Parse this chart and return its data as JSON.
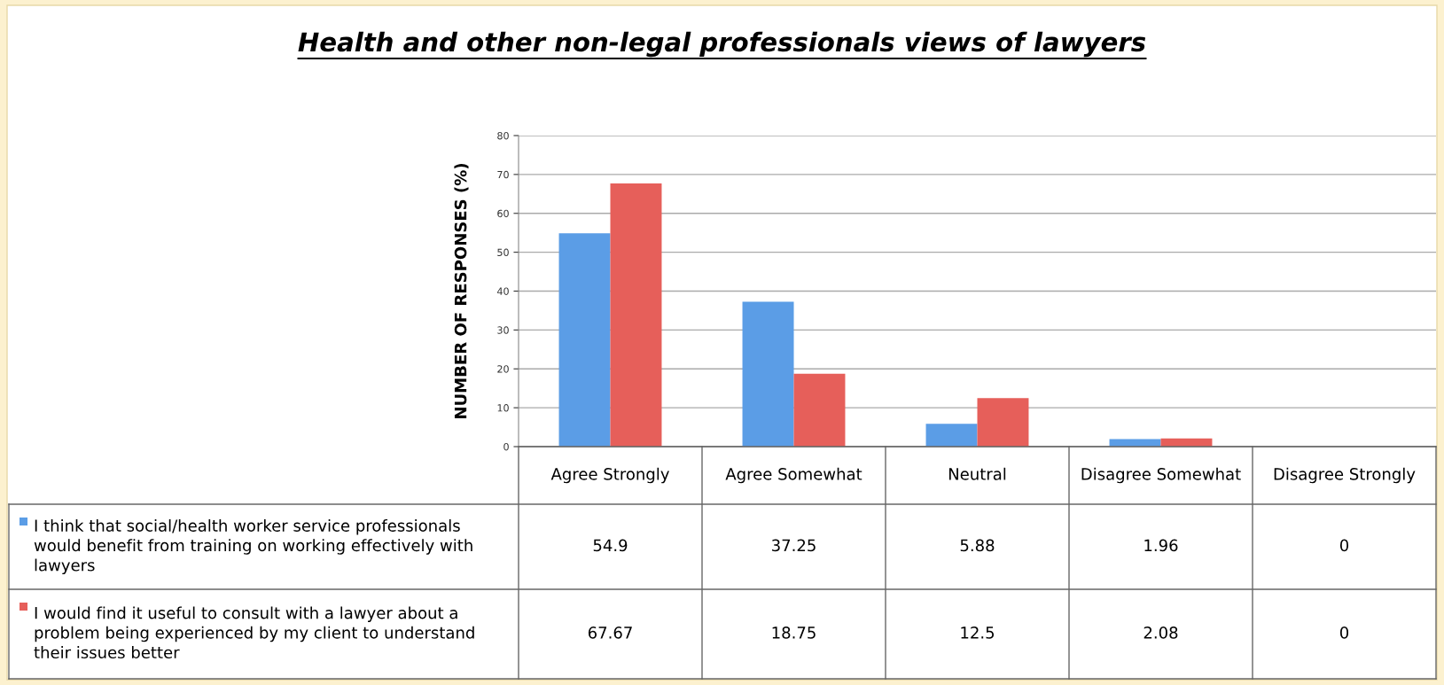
{
  "chart_data": {
    "type": "bar",
    "title": "Health and other non-legal professionals views of lawyers",
    "ylabel": "NUMBER OF RESPONSES (%)",
    "categories": [
      "Agree Strongly",
      "Agree Somewhat",
      "Neutral",
      "Disagree Somewhat",
      "Disagree Strongly"
    ],
    "series": [
      {
        "name": "I think that social/health worker service professionals would benefit from training on working effectively with lawyers",
        "color": "#5b9de6",
        "values": [
          54.9,
          37.25,
          5.88,
          1.96,
          0
        ]
      },
      {
        "name": "I would find it useful to consult with a lawyer about a problem being experienced by my client to understand their issues better",
        "color": "#e65f5a",
        "values": [
          67.67,
          18.75,
          12.5,
          2.08,
          0
        ]
      }
    ],
    "ylim": [
      0,
      80
    ],
    "yticks": [
      0,
      10,
      20,
      30,
      40,
      50,
      60,
      70,
      80
    ],
    "grid": "y",
    "legend": "bottom",
    "data_labels": true
  }
}
